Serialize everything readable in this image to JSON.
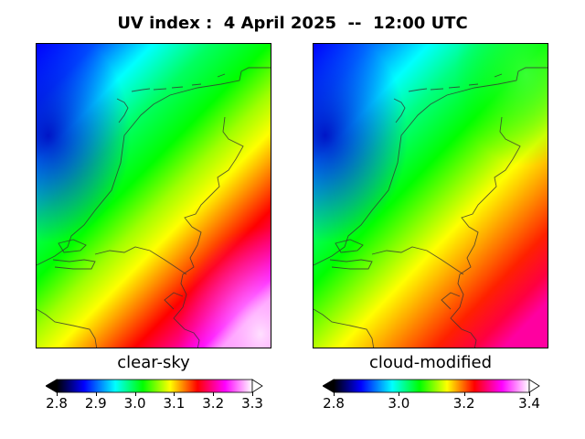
{
  "title": "UV index :  4 April 2025  --  12:00 UTC",
  "panels": [
    {
      "label": "clear-sky",
      "colorbar": {
        "min": 2.8,
        "max": 3.3,
        "ticks": [
          "2.8",
          "2.9",
          "3.0",
          "3.1",
          "3.2",
          "3.3"
        ],
        "extend": "both"
      }
    },
    {
      "label": "cloud-modified",
      "colorbar": {
        "min": 2.8,
        "max": 3.4,
        "ticks": [
          "2.8",
          "3.0",
          "3.2",
          "3.4"
        ],
        "extend": "both"
      }
    }
  ],
  "colormap": [
    "#000000",
    "#0000ff",
    "#00ffff",
    "#00ff00",
    "#ffff00",
    "#ff0000",
    "#ff00ff",
    "#ffffff"
  ],
  "region": "Netherlands"
}
